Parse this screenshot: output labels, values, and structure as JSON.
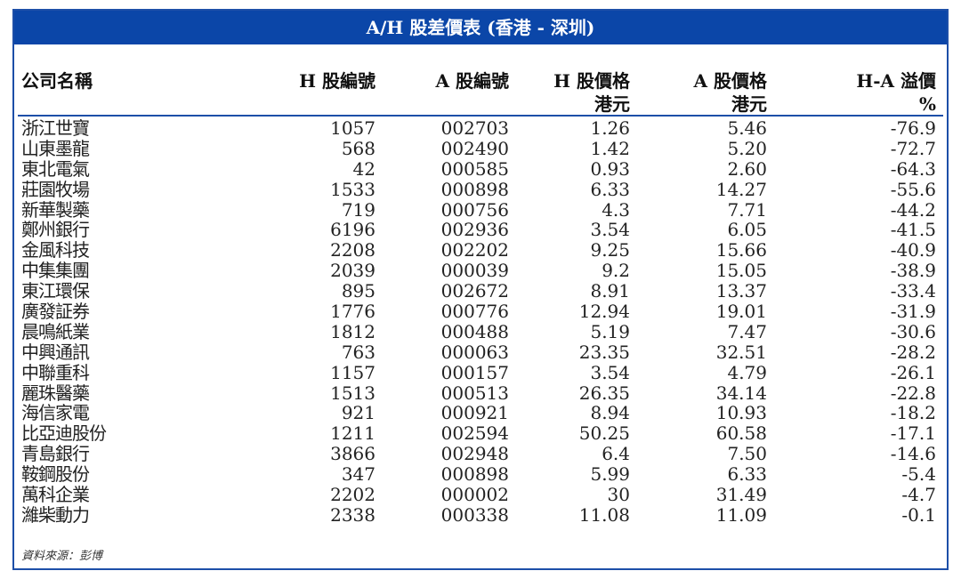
{
  "title": "A/H 股差價表 (香港 - 深圳)",
  "headers": {
    "name": "公司名稱",
    "h_code": "H 股編號",
    "a_code": "A 股編號",
    "h_price": "H 股價格",
    "h_price_unit": "港元",
    "a_price": "A 股價格",
    "a_price_unit": "港元",
    "premium": "H-A 溢價",
    "premium_unit": "%"
  },
  "rows": [
    [
      "浙江世寶",
      "1057",
      "002703",
      "1.26",
      "5.46",
      "-76.9"
    ],
    [
      "山東墨龍",
      "568",
      "002490",
      "1.42",
      "5.20",
      "-72.7"
    ],
    [
      "東北電氣",
      "42",
      "000585",
      "0.93",
      "2.60",
      "-64.3"
    ],
    [
      "莊園牧場",
      "1533",
      "000898",
      "6.33",
      "14.27",
      "-55.6"
    ],
    [
      "新華製藥",
      "719",
      "000756",
      "4.3",
      "7.71",
      "-44.2"
    ],
    [
      "鄭州銀行",
      "6196",
      "002936",
      "3.54",
      "6.05",
      "-41.5"
    ],
    [
      "金風科技",
      "2208",
      "002202",
      "9.25",
      "15.66",
      "-40.9"
    ],
    [
      "中集集團",
      "2039",
      "000039",
      "9.2",
      "15.05",
      "-38.9"
    ],
    [
      "東江環保",
      "895",
      "002672",
      "8.91",
      "13.37",
      "-33.4"
    ],
    [
      "廣發証券",
      "1776",
      "000776",
      "12.94",
      "19.01",
      "-31.9"
    ],
    [
      "晨鳴紙業",
      "1812",
      "000488",
      "5.19",
      "7.47",
      "-30.6"
    ],
    [
      "中興通訊",
      "763",
      "000063",
      "23.35",
      "32.51",
      "-28.2"
    ],
    [
      "中聯重科",
      "1157",
      "000157",
      "3.54",
      "4.79",
      "-26.1"
    ],
    [
      "麗珠醫藥",
      "1513",
      "000513",
      "26.35",
      "34.14",
      "-22.8"
    ],
    [
      "海信家電",
      "921",
      "000921",
      "8.94",
      "10.93",
      "-18.2"
    ],
    [
      "比亞迪股份",
      "1211",
      "002594",
      "50.25",
      "60.58",
      "-17.1"
    ],
    [
      "青島銀行",
      "3866",
      "002948",
      "6.4",
      "7.50",
      "-14.6"
    ],
    [
      "鞍鋼股份",
      "347",
      "000898",
      "5.99",
      "6.33",
      "-5.4"
    ],
    [
      "萬科企業",
      "2202",
      "000002",
      "30",
      "31.49",
      "-4.7"
    ],
    [
      "濰柴動力",
      "2338",
      "000338",
      "11.08",
      "11.09",
      "-0.1"
    ]
  ],
  "source": "資料來源：彭博",
  "colors": {
    "border": "#1d4fa8",
    "title_bg": "#0b46a8"
  }
}
